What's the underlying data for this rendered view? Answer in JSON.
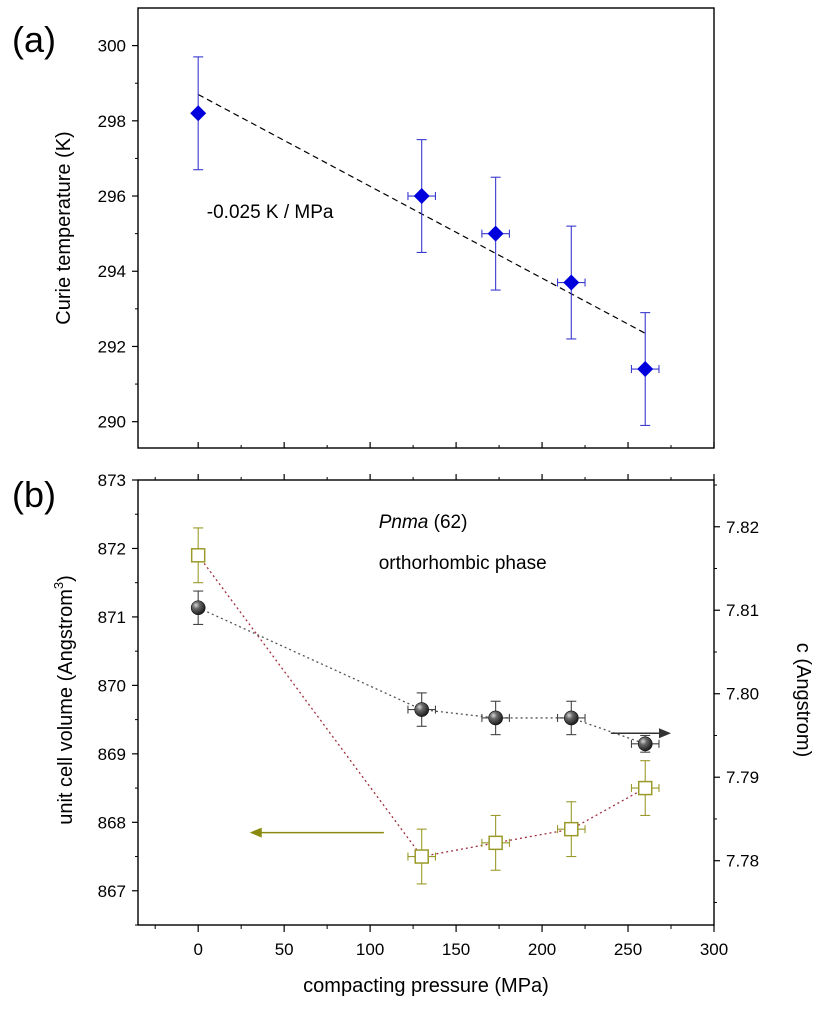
{
  "chart_data": [
    {
      "type": "scatter",
      "panel_label": "(a)",
      "xlabel": "compacting pressure (MPa)",
      "ylabel": "Curie temperature (K)",
      "xlim": [
        -35,
        300
      ],
      "ylim": [
        289.3,
        301
      ],
      "x_ticks": [
        0,
        50,
        100,
        150,
        200,
        250,
        300
      ],
      "y_ticks": [
        290,
        292,
        294,
        296,
        298,
        300
      ],
      "y_tick_labels": [
        "290",
        "292",
        "294",
        "296",
        "298",
        "300"
      ],
      "grid": false,
      "series": [
        {
          "marker": "filled-diamond",
          "color": "#0000dd",
          "errorbar_color": "#3a3ad0",
          "points": [
            {
              "x": 0,
              "y": 298.2,
              "yerr": 1.5,
              "xerr": 0
            },
            {
              "x": 130,
              "y": 296.0,
              "yerr": 1.5,
              "xerr": 8
            },
            {
              "x": 173,
              "y": 295.0,
              "yerr": 1.5,
              "xerr": 8
            },
            {
              "x": 217,
              "y": 293.7,
              "yerr": 1.5,
              "xerr": 8
            },
            {
              "x": 260,
              "y": 291.4,
              "yerr": 1.5,
              "xerr": 8
            }
          ]
        }
      ],
      "fit_line": {
        "x": [
          0,
          260
        ],
        "y": [
          298.7,
          292.35
        ],
        "style": "dashed",
        "color": "#000000"
      },
      "annotations": [
        {
          "text": "-0.025 K / MPa",
          "x": 5,
          "y": 295.6
        }
      ]
    },
    {
      "type": "scatter",
      "panel_label": "(b)",
      "xlabel": "compacting pressure (MPa)",
      "ylabel": "unit cell volume (Angstrom",
      "ylabel_superscript": "3",
      "ylabel_close": ")",
      "y2label": "c (Angstrom)",
      "xlim": [
        -35,
        300
      ],
      "x_ticks": [
        0,
        50,
        100,
        150,
        200,
        250,
        300
      ],
      "x_tick_labels": [
        "0",
        "50",
        "100",
        "150",
        "200",
        "250",
        "300"
      ],
      "ylim": [
        866.5,
        873
      ],
      "y_ticks": [
        867,
        868,
        869,
        870,
        871,
        872,
        873
      ],
      "y_tick_labels": [
        "867",
        "868",
        "869",
        "870",
        "871",
        "872",
        "873"
      ],
      "y2lim": [
        7.7723,
        7.8256
      ],
      "y2_ticks": [
        7.78,
        7.79,
        7.8,
        7.81,
        7.82
      ],
      "y2_tick_labels": [
        "7.78",
        "7.79",
        "7.80",
        "7.81",
        "7.82"
      ],
      "grid": false,
      "series": [
        {
          "marker": "open-square",
          "axis": "left",
          "color": "#9a9a2a",
          "line_color": "#a03040",
          "line_style": "dotted",
          "points": [
            {
              "x": 0,
              "y": 871.9,
              "yerr": 0.4,
              "xerr": 0
            },
            {
              "x": 130,
              "y": 867.5,
              "yerr": 0.4,
              "xerr": 8
            },
            {
              "x": 173,
              "y": 867.7,
              "yerr": 0.4,
              "xerr": 8
            },
            {
              "x": 217,
              "y": 867.9,
              "yerr": 0.4,
              "xerr": 8
            },
            {
              "x": 260,
              "y": 868.5,
              "yerr": 0.4,
              "xerr": 8
            }
          ]
        },
        {
          "marker": "filled-sphere",
          "axis": "right",
          "color": "#333333",
          "line_color": "#555555",
          "line_style": "dotted",
          "points": [
            {
              "x": 0,
              "y": 7.8103,
              "yerr": 0.002,
              "xerr": 0
            },
            {
              "x": 130,
              "y": 7.7981,
              "yerr": 0.002,
              "xerr": 8
            },
            {
              "x": 173,
              "y": 7.7971,
              "yerr": 0.002,
              "xerr": 8
            },
            {
              "x": 217,
              "y": 7.7971,
              "yerr": 0.002,
              "xerr": 8
            },
            {
              "x": 260,
              "y": 7.794,
              "yerr": 0.001,
              "xerr": 8
            }
          ]
        }
      ],
      "annotations": [
        {
          "text_italic": "Pnma",
          "text": " (62)",
          "x": 105,
          "y": 872.3
        },
        {
          "text": "orthorhombic phase",
          "x": 105,
          "y": 871.7
        }
      ],
      "arrows": [
        {
          "points_to": "left",
          "color": "#8a8a10",
          "x_from": 108,
          "x_to": 30,
          "y": 867.85
        },
        {
          "points_to": "right",
          "color": "#333333",
          "x_from": 240,
          "x_to": 275,
          "y": 869.3
        }
      ]
    }
  ]
}
